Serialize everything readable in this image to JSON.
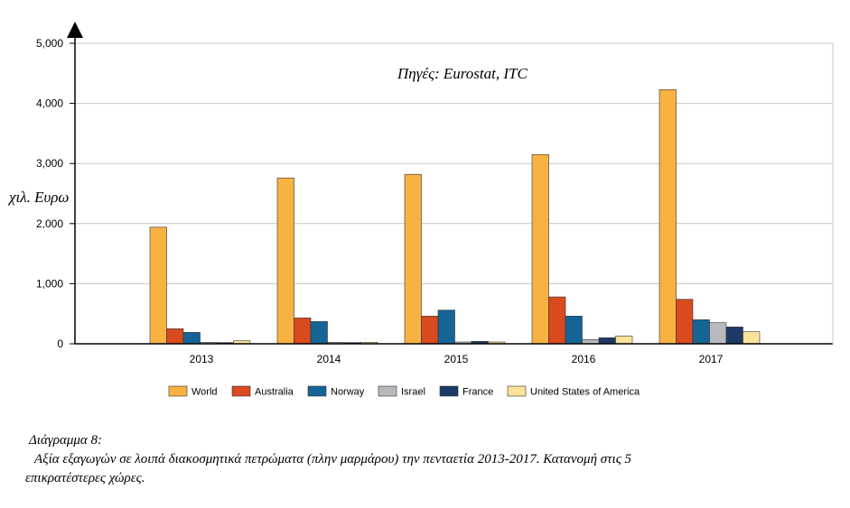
{
  "chart_data": {
    "type": "bar",
    "title": "Πηγές: Eurostat, ITC",
    "ylabel": "χιλ. Ευρω",
    "xlabel": "",
    "ylim": [
      0,
      5000
    ],
    "yticks": [
      "0",
      "1,000",
      "2,000",
      "3,000",
      "4,000",
      "5,000"
    ],
    "ytick_values": [
      0,
      1000,
      2000,
      3000,
      4000,
      5000
    ],
    "categories": [
      "2013",
      "2014",
      "2015",
      "2016",
      "2017"
    ],
    "grid": true,
    "legend_position": "bottom",
    "series": [
      {
        "name": "World",
        "color": "#F8B242",
        "values": [
          1940,
          2760,
          2820,
          3150,
          4230
        ]
      },
      {
        "name": "Australia",
        "color": "#D94A1E",
        "values": [
          250,
          430,
          460,
          780,
          740
        ]
      },
      {
        "name": "Norway",
        "color": "#156496",
        "values": [
          190,
          370,
          560,
          460,
          400
        ]
      },
      {
        "name": "Israel",
        "color": "#B7B9BE",
        "values": [
          25,
          25,
          30,
          70,
          350
        ]
      },
      {
        "name": "France",
        "color": "#1C3A66",
        "values": [
          20,
          20,
          40,
          100,
          280
        ]
      },
      {
        "name": "United States of America",
        "color": "#FBE29A",
        "values": [
          50,
          25,
          30,
          130,
          200
        ]
      }
    ]
  },
  "caption": {
    "title": "Διάγραμμα 8:",
    "line1": "Αξία εξαγωγών σε λοιπά διακοσμητικά πετρώματα (πλην μαρμάρου) την πενταετία 2013-2017. Κατανομή στις 5",
    "line2": "επικρατέστερες χώρες."
  }
}
